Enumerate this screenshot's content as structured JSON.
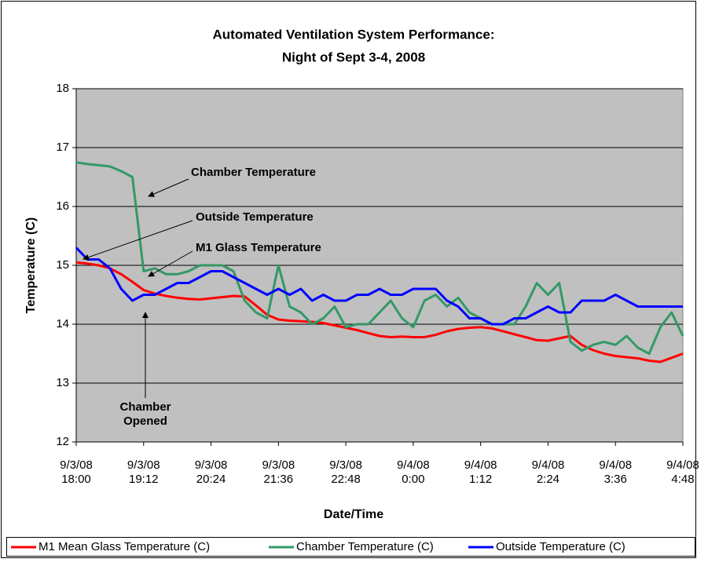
{
  "chart_data": {
    "type": "line",
    "title": "Automated Ventilation System Performance:",
    "subtitle": "Night of Sept 3-4, 2008",
    "x_label": "Date/Time",
    "y_label": "Temperature (C)",
    "x": [
      "9/3/08 18:00",
      "9/3/08 18:12",
      "9/3/08 18:24",
      "9/3/08 18:36",
      "9/3/08 18:48",
      "9/3/08 19:00",
      "9/3/08 19:12",
      "9/3/08 19:24",
      "9/3/08 19:36",
      "9/3/08 19:48",
      "9/3/08 20:00",
      "9/3/08 20:12",
      "9/3/08 20:24",
      "9/3/08 20:36",
      "9/3/08 20:48",
      "9/3/08 21:00",
      "9/3/08 21:12",
      "9/3/08 21:24",
      "9/3/08 21:36",
      "9/3/08 21:48",
      "9/3/08 22:00",
      "9/3/08 22:12",
      "9/3/08 22:24",
      "9/3/08 22:36",
      "9/3/08 22:48",
      "9/3/08 23:00",
      "9/3/08 23:12",
      "9/3/08 23:24",
      "9/3/08 23:36",
      "9/3/08 23:48",
      "9/4/08 0:00",
      "9/4/08 0:12",
      "9/4/08 0:24",
      "9/4/08 0:36",
      "9/4/08 0:48",
      "9/4/08 1:00",
      "9/4/08 1:12",
      "9/4/08 1:24",
      "9/4/08 1:36",
      "9/4/08 1:48",
      "9/4/08 2:00",
      "9/4/08 2:12",
      "9/4/08 2:24",
      "9/4/08 2:36",
      "9/4/08 2:48",
      "9/4/08 3:00",
      "9/4/08 3:12",
      "9/4/08 3:24",
      "9/4/08 3:36",
      "9/4/08 3:48",
      "9/4/08 4:00",
      "9/4/08 4:12",
      "9/4/08 4:24",
      "9/4/08 4:36",
      "9/4/08 4:48"
    ],
    "series": [
      {
        "name": "M1 Mean Glass Temperature (C)",
        "color": "#ff0000",
        "values": [
          15.05,
          15.03,
          15.0,
          14.95,
          14.85,
          14.72,
          14.58,
          14.52,
          14.48,
          14.45,
          14.43,
          14.42,
          14.44,
          14.46,
          14.48,
          14.47,
          14.32,
          14.16,
          14.08,
          14.06,
          14.05,
          14.04,
          14.02,
          13.98,
          13.94,
          13.9,
          13.85,
          13.8,
          13.78,
          13.79,
          13.78,
          13.78,
          13.82,
          13.88,
          13.92,
          13.94,
          13.95,
          13.93,
          13.88,
          13.83,
          13.78,
          13.73,
          13.72,
          13.76,
          13.8,
          13.65,
          13.56,
          13.5,
          13.46,
          13.44,
          13.42,
          13.38,
          13.36,
          13.43,
          13.5
        ]
      },
      {
        "name": "Chamber Temperature (C)",
        "color": "#339966",
        "values": [
          16.75,
          16.72,
          16.7,
          16.68,
          16.6,
          16.5,
          14.9,
          14.95,
          14.85,
          14.85,
          14.9,
          15.0,
          15.0,
          15.0,
          14.9,
          14.4,
          14.2,
          14.1,
          15.0,
          14.3,
          14.2,
          14.0,
          14.1,
          14.3,
          13.95,
          14.0,
          14.0,
          14.2,
          14.4,
          14.1,
          13.95,
          14.4,
          14.5,
          14.3,
          14.45,
          14.2,
          14.1,
          14.0,
          14.0,
          14.0,
          14.3,
          14.7,
          14.5,
          14.7,
          13.7,
          13.55,
          13.65,
          13.7,
          13.65,
          13.8,
          13.6,
          13.5,
          13.95,
          14.2,
          13.8
        ]
      },
      {
        "name": "Outside Temperature (C)",
        "color": "#0000ff",
        "values": [
          15.3,
          15.1,
          15.1,
          14.95,
          14.6,
          14.4,
          14.5,
          14.5,
          14.6,
          14.7,
          14.7,
          14.8,
          14.9,
          14.9,
          14.8,
          14.7,
          14.6,
          14.5,
          14.6,
          14.5,
          14.6,
          14.4,
          14.5,
          14.4,
          14.4,
          14.5,
          14.5,
          14.6,
          14.5,
          14.5,
          14.6,
          14.6,
          14.6,
          14.4,
          14.3,
          14.1,
          14.1,
          14.0,
          14.0,
          14.1,
          14.1,
          14.2,
          14.3,
          14.2,
          14.2,
          14.4,
          14.4,
          14.4,
          14.5,
          14.4,
          14.3,
          14.3,
          14.3,
          14.3,
          14.3
        ]
      }
    ],
    "xlim": [
      "9/3/08 18:00",
      "9/4/08 4:48"
    ],
    "xticks": [
      "9/3/08 18:00",
      "9/3/08 19:12",
      "9/3/08 20:24",
      "9/3/08 21:36",
      "9/3/08 22:48",
      "9/4/08 0:00",
      "9/4/08 1:12",
      "9/4/08 2:24",
      "9/4/08 3:36",
      "9/4/08 4:48"
    ],
    "ylim": [
      12,
      18
    ],
    "yticks": [
      12,
      13,
      14,
      15,
      16,
      17,
      18
    ],
    "grid": true,
    "plot_background": "#c0c0c0",
    "legend": "bottom",
    "annotations": [
      "Chamber Temperature",
      "Outside Temperature",
      "M1 Glass Temperature",
      "Chamber Opened"
    ]
  }
}
